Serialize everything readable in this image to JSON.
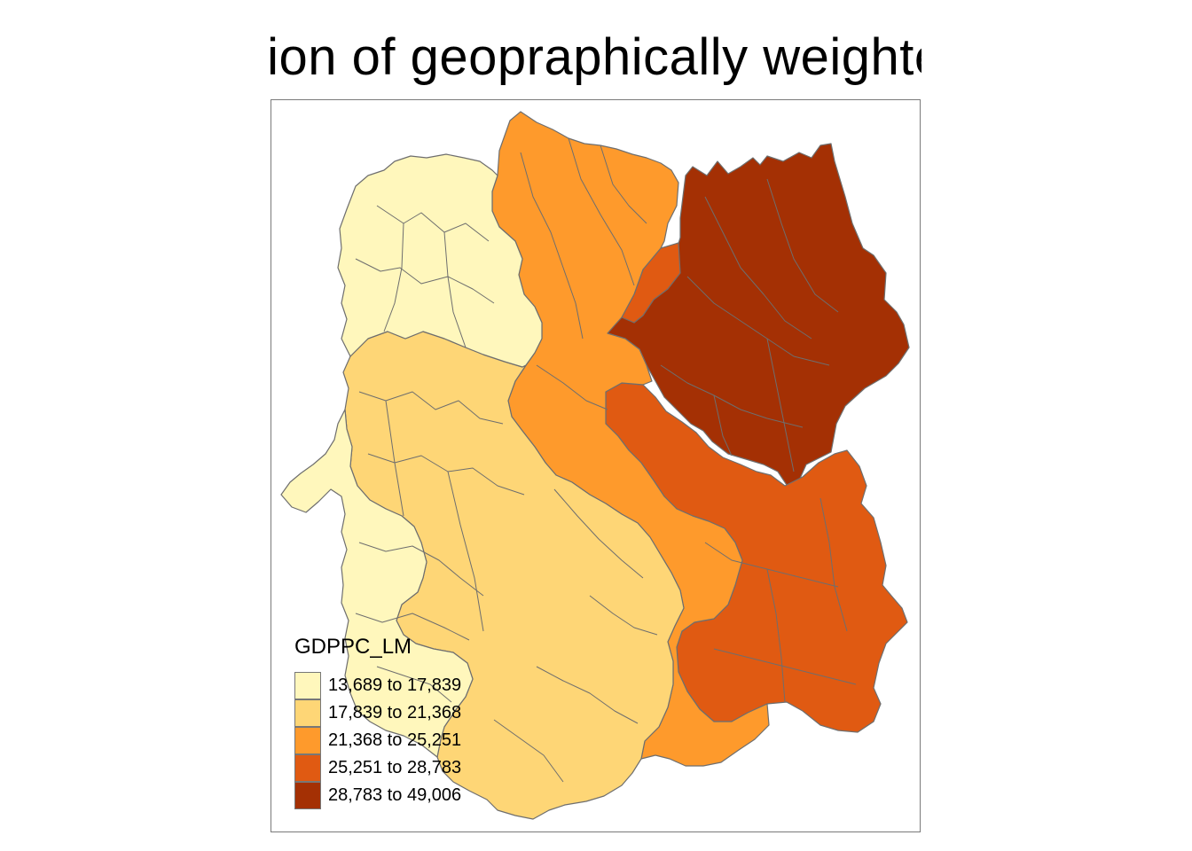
{
  "title": "Distribution of geopraphically weighted mean",
  "legend": {
    "title": "GDPPC_LM",
    "classes": [
      {
        "label": "13,689 to 17,839",
        "color": "#fff7bc"
      },
      {
        "label": "17,839 to 21,368",
        "color": "#fed676"
      },
      {
        "label": "21,368 to 25,251",
        "color": "#fe9a2c"
      },
      {
        "label": "25,251 to 28,783",
        "color": "#e05a12"
      },
      {
        "label": "28,783 to 49,006",
        "color": "#a43004"
      }
    ]
  },
  "colors": {
    "boundary": "#6e6e6e",
    "frame": "#7a7a7a"
  }
}
